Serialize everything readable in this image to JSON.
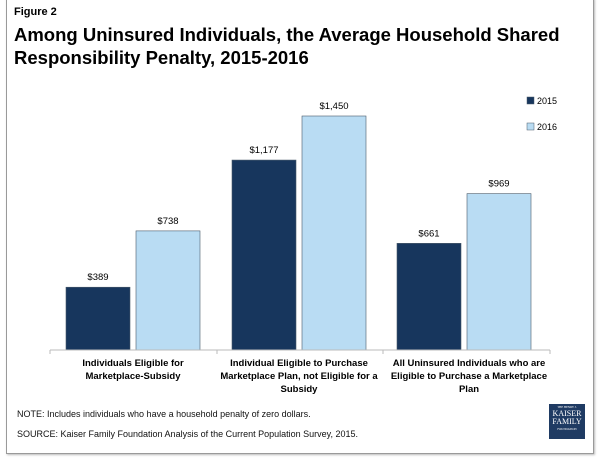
{
  "figure_label": "Figure 2",
  "chart_data": {
    "type": "bar",
    "title": "Among Uninsured Individuals, the Average Household Shared Responsibility Penalty, 2015-2016",
    "categories": [
      "Individuals Eligible for Marketplace-Subsidy",
      "Individual Eligible to Purchase Marketplace Plan, not Eligible for a Subsidy",
      "All Uninsured Individuals who are Eligible to Purchase  a Marketplace Plan"
    ],
    "series": [
      {
        "name": "2015",
        "color": "#17365d",
        "values": [
          389,
          1177,
          661
        ],
        "labels": [
          "$389",
          "$1,177",
          "$661"
        ]
      },
      {
        "name": "2016",
        "color": "#b9dcf3",
        "values": [
          738,
          1450,
          969
        ],
        "labels": [
          "$738",
          "$1,450",
          "$969"
        ]
      }
    ],
    "ylim": [
      0,
      1450
    ],
    "grid": false,
    "legend": "right"
  },
  "note": "NOTE: Includes individuals who have a household penalty of zero dollars.",
  "source": "SOURCE:  Kaiser Family Foundation Analysis of the Current Population Survey, 2015.",
  "logo": {
    "line1": "THE HENRY J.",
    "line2": "KAISER",
    "line3": "FAMILY",
    "line4": "FOUNDATION"
  }
}
